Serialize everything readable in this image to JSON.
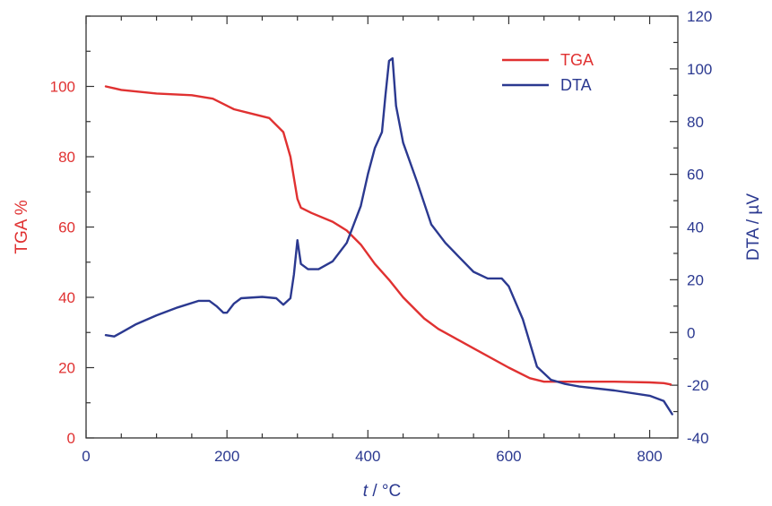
{
  "chart_data": {
    "type": "line",
    "xlabel_italic": "t",
    "xlabel_rest": " / °C",
    "ylabel_left": "TGA %",
    "ylabel_right": "DTA / µV",
    "xlim": [
      0,
      840
    ],
    "ylim_left": [
      0,
      120
    ],
    "ylim_right": [
      -40,
      120
    ],
    "x_ticks": [
      0,
      200,
      400,
      600,
      800
    ],
    "y_ticks_left": [
      0,
      20,
      40,
      60,
      80,
      100
    ],
    "y_ticks_right": [
      -40,
      -20,
      0,
      20,
      40,
      60,
      80,
      100,
      120
    ],
    "grid": false,
    "legend_position": "top-right",
    "colors": {
      "tga": "#e03131",
      "dta": "#2b3990",
      "axis": "#333333"
    },
    "series": [
      {
        "name": "TGA",
        "axis": "left",
        "x": [
          28,
          50,
          100,
          150,
          180,
          200,
          210,
          230,
          260,
          280,
          290,
          295,
          300,
          305,
          320,
          350,
          370,
          390,
          410,
          430,
          450,
          480,
          500,
          550,
          600,
          630,
          650,
          700,
          750,
          800,
          820,
          830
        ],
        "y": [
          100,
          99,
          98,
          97.5,
          96.5,
          94.5,
          93.5,
          92.5,
          91,
          87,
          80,
          74,
          68,
          65.5,
          64,
          61.5,
          59,
          55,
          49.5,
          45,
          40,
          34,
          31,
          25.5,
          20,
          17,
          16,
          16,
          16,
          15.8,
          15.6,
          15.2
        ]
      },
      {
        "name": "DTA",
        "axis": "right",
        "x": [
          28,
          40,
          50,
          70,
          100,
          130,
          160,
          175,
          185,
          195,
          200,
          210,
          220,
          250,
          270,
          280,
          290,
          295,
          300,
          305,
          315,
          330,
          350,
          370,
          390,
          400,
          410,
          420,
          425,
          430,
          435,
          440,
          450,
          470,
          490,
          510,
          530,
          550,
          570,
          590,
          600,
          620,
          640,
          660,
          680,
          700,
          750,
          800,
          820,
          832
        ],
        "y": [
          -1,
          -1.5,
          0,
          3,
          6.5,
          9.5,
          12,
          12,
          10,
          7.5,
          7.5,
          11,
          13,
          13.5,
          13,
          10.5,
          13,
          22,
          35,
          26,
          24,
          24,
          27,
          34,
          48,
          60,
          70,
          76,
          90,
          103,
          104,
          86,
          72,
          57,
          41,
          34,
          28.5,
          23,
          20.5,
          20.5,
          17.5,
          5,
          -13,
          -18,
          -19.5,
          -20.5,
          -22,
          -24,
          -26,
          -31
        ]
      }
    ]
  }
}
